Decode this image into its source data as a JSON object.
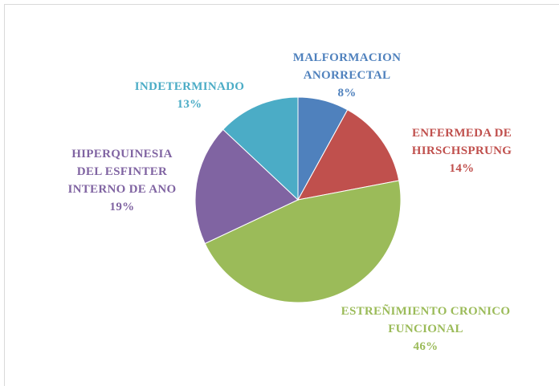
{
  "chart_data": {
    "type": "pie",
    "categories": [
      "MALFORMACION\nANORRECTAL",
      "ENFERMEDA DE\nHIRSCHSPRUNG",
      "ESTREÑIMIENTO CRONICO\nFUNCIONAL",
      "HIPERQUINESIA\nDEL ESFINTER\nINTERNO DE ANO",
      "INDETERMINADO"
    ],
    "values": [
      8,
      14,
      46,
      19,
      13
    ],
    "value_labels": [
      "8%",
      "14%",
      "46%",
      "19%",
      "13%"
    ],
    "colors": [
      "#4f81bd",
      "#c0504d",
      "#9bbb59",
      "#8064a2",
      "#4bacc6"
    ]
  }
}
